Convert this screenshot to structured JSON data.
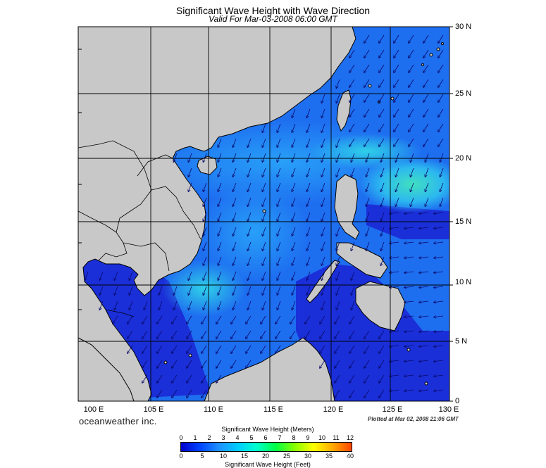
{
  "header": {
    "title": "Significant Wave Height with Wave Direction",
    "subtitle": "Valid For Mar-03-2008 06:00 GMT"
  },
  "axes": {
    "lat_labels": [
      "30 N",
      "25 N",
      "20 N",
      "15 N",
      "10 N",
      "5 N",
      "0"
    ],
    "lon_labels": [
      "100 E",
      "105 E",
      "110 E",
      "115 E",
      "120 E",
      "125 E",
      "130 E"
    ]
  },
  "footer": {
    "credit": "oceanweather inc.",
    "plotted": "Plotted at Mar 02, 2008 21:06 GMT"
  },
  "colorbar": {
    "meters_title": "Significant Wave Height (Meters)",
    "feet_title": "Significant Wave Height (Feet)",
    "meters_ticks": [
      "0",
      "1",
      "2",
      "3",
      "4",
      "5",
      "6",
      "7",
      "8",
      "9",
      "10",
      "11",
      "12"
    ],
    "feet_ticks": [
      "0",
      "5",
      "10",
      "15",
      "20",
      "25",
      "30",
      "35",
      "40"
    ],
    "colors": [
      "#0000cc",
      "#0044ff",
      "#1e90ff",
      "#00ccff",
      "#00ffcc",
      "#00ff44",
      "#88ff00",
      "#ffff00",
      "#ffaa00",
      "#ff4400"
    ]
  },
  "map_colors": {
    "land": "#c8c8c8",
    "deep_blue": "#1a2fd8",
    "mid_blue": "#1e6ef0",
    "light_blue": "#2a9cf5",
    "cyan": "#30c8f0",
    "aqua": "#34d8d0",
    "grid": "#000000"
  }
}
